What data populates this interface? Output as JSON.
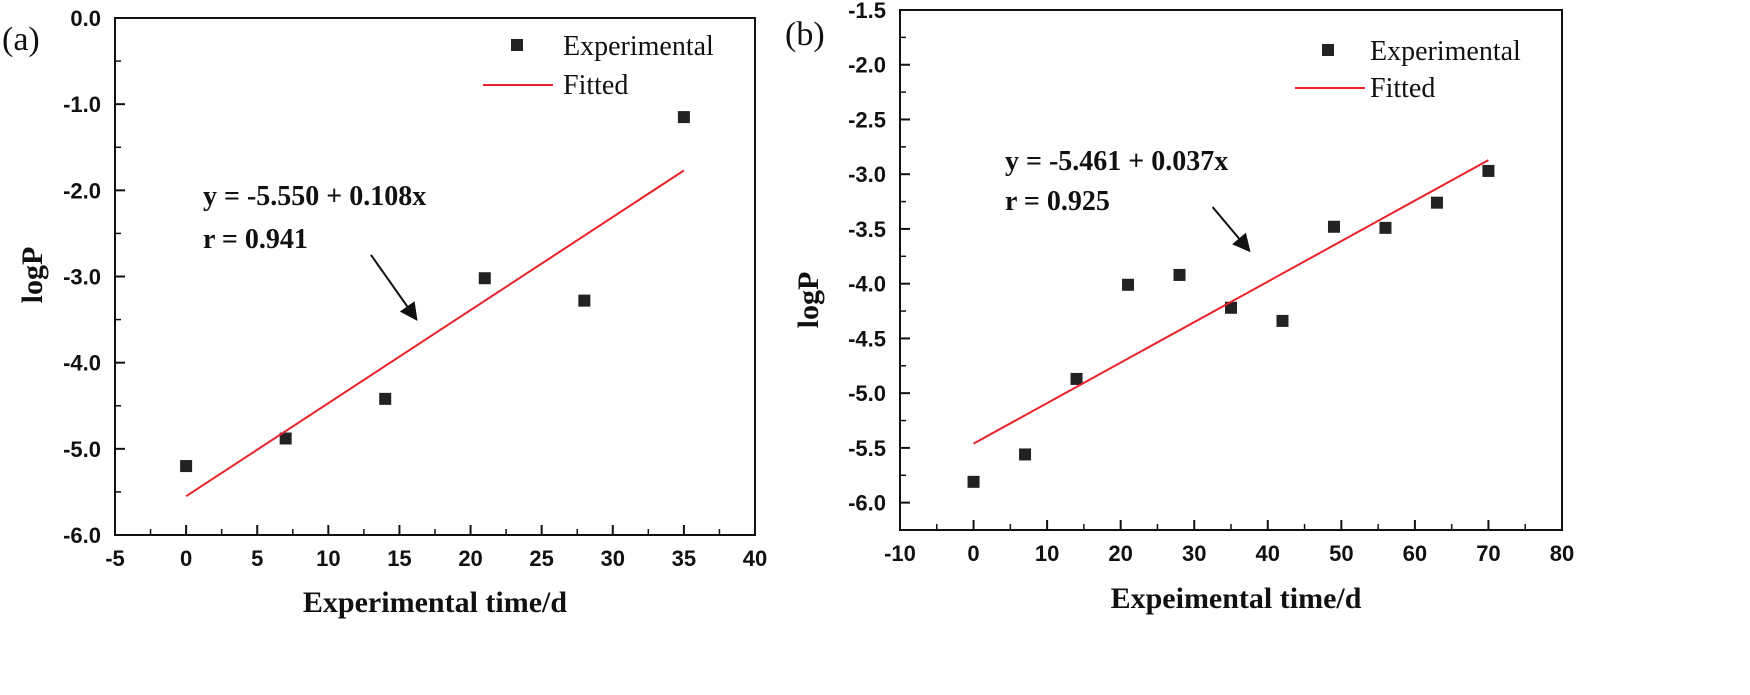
{
  "chart_data": [
    {
      "type": "scatter",
      "panel_label": "(a)",
      "xlabel": "Experimental time/d",
      "ylabel": "logP",
      "xlim": [
        -5,
        40
      ],
      "ylim": [
        -6.0,
        0.0
      ],
      "xticks": [
        -5,
        0,
        5,
        10,
        15,
        20,
        25,
        30,
        35,
        40
      ],
      "xtick_labels": [
        "-5",
        "0",
        "5",
        "10",
        "15",
        "20",
        "25",
        "30",
        "35",
        "40"
      ],
      "yticks": [
        0,
        -1,
        -2,
        -3,
        -4,
        -5,
        -6
      ],
      "ytick_labels": [
        "0.0",
        "-1.0",
        "-2.0",
        "-3.0",
        "-4.0",
        "-5.0",
        "-6.0"
      ],
      "series": [
        {
          "name": "Experimental",
          "kind": "scatter",
          "color": "#222222",
          "x": [
            0,
            7,
            14,
            21,
            28,
            35
          ],
          "y": [
            -5.2,
            -4.88,
            -4.42,
            -3.02,
            -3.28,
            -1.15
          ]
        },
        {
          "name": "Fitted",
          "kind": "line",
          "color": "#e8232a",
          "x": [
            0,
            35
          ],
          "y": [
            -5.55,
            -1.77
          ]
        }
      ],
      "legend": {
        "position": "top-right",
        "entries": [
          "Experimental",
          "Fitted"
        ]
      },
      "annotation": {
        "lines": [
          "y = -5.550 + 0.108x",
          "r = 0.941"
        ],
        "arrow_from": [
          13,
          -2.75
        ],
        "arrow_to": [
          16.2,
          -3.5
        ]
      }
    },
    {
      "type": "scatter",
      "panel_label": "(b)",
      "xlabel": "Expeimental time/d",
      "ylabel": "logP",
      "xlim": [
        -10,
        80
      ],
      "ylim": [
        -6.25,
        -1.5
      ],
      "xticks": [
        -10,
        0,
        10,
        20,
        30,
        40,
        50,
        60,
        70,
        80
      ],
      "xtick_labels": [
        "-10",
        "0",
        "10",
        "20",
        "30",
        "40",
        "50",
        "60",
        "70",
        "80"
      ],
      "yticks": [
        -1.5,
        -2.0,
        -2.5,
        -3.0,
        -3.5,
        -4.0,
        -4.5,
        -5.0,
        -5.5,
        -6.0
      ],
      "ytick_labels": [
        "-1.5",
        "-2.0",
        "-2.5",
        "-3.0",
        "-3.5",
        "-4.0",
        "-4.5",
        "-5.0",
        "-5.5",
        "-6.0"
      ],
      "series": [
        {
          "name": "Experimental",
          "kind": "scatter",
          "color": "#222222",
          "x": [
            0,
            7,
            14,
            21,
            28,
            35,
            42,
            49,
            56,
            63,
            70
          ],
          "y": [
            -5.81,
            -5.56,
            -4.87,
            -4.01,
            -3.92,
            -4.22,
            -4.34,
            -3.48,
            -3.49,
            -3.26,
            -2.97
          ]
        },
        {
          "name": "Fitted",
          "kind": "line",
          "color": "#e8232a",
          "x": [
            0,
            70
          ],
          "y": [
            -5.461,
            -2.871
          ]
        }
      ],
      "legend": {
        "position": "top-right",
        "entries": [
          "Experimental",
          "Fitted"
        ]
      },
      "annotation": {
        "lines": [
          "y = -5.461 + 0.037x",
          "r = 0.925"
        ],
        "arrow_from": [
          32.5,
          -3.3
        ],
        "arrow_to": [
          37.5,
          -3.7
        ]
      }
    }
  ]
}
